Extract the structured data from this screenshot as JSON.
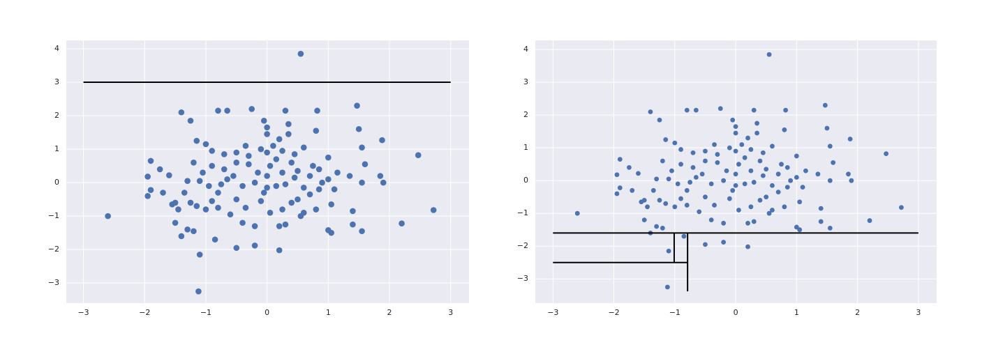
{
  "chart_data": [
    {
      "type": "scatter",
      "color": "#4c72b0",
      "line_color": "#000000",
      "grid": true,
      "xlim": [
        -3.28,
        3.3
      ],
      "ylim": [
        -3.6,
        4.25
      ],
      "xticks": [
        {
          "value": -3,
          "label": "−3"
        },
        {
          "value": -2,
          "label": "−2"
        },
        {
          "value": -1,
          "label": "−1"
        },
        0,
        1,
        2,
        3
      ],
      "yticks": [
        {
          "value": -3,
          "label": "−3"
        },
        {
          "value": -2,
          "label": "−2"
        },
        {
          "value": -1,
          "label": "−1"
        },
        0,
        1,
        2,
        3,
        4
      ],
      "x": [
        0.55,
        1.47,
        -1.4,
        -1.25,
        -0.8,
        -0.65,
        -0.25,
        0.3,
        0.82,
        1.5,
        1.88,
        2.47,
        2.72,
        2.2,
        1.55,
        1.05,
        1.0,
        1.4,
        -2.6,
        -1.95,
        -1.9,
        -1.95,
        -1.9,
        -1.75,
        -1.7,
        -1.6,
        -1.5,
        -1.45,
        -1.5,
        -1.4,
        -1.3,
        -1.2,
        -1.1,
        -1.12,
        -0.85,
        -0.5,
        -0.2,
        0.2,
        -1.15,
        -1.0,
        -0.9,
        -0.7,
        -0.5,
        -0.3,
        0,
        0.1,
        0.2,
        0.35,
        0.35,
        0,
        -0.05,
        0,
        0.6,
        0.8,
        1.0,
        1.55,
        1.6,
        1.85,
        1.9,
        1.55,
        1.35,
        1.15,
        1.0,
        0.85,
        0.7,
        0.5,
        0.4,
        0.25,
        0.15,
        0.05,
        -0.15,
        -0.3,
        -0.5,
        -0.7,
        -0.9,
        -1.05,
        -1.2,
        -1.3,
        -1.1,
        -0.95,
        -0.8,
        -0.65,
        -0.4,
        -0.2,
        0,
        0.15,
        0.3,
        0.45,
        0.6,
        0.85,
        1.05,
        1.4,
        0.8,
        0.6,
        0.4,
        0.25,
        0.2,
        0.3,
        0.05,
        -0.1,
        -0.2,
        -0.35,
        -0.5,
        -0.6,
        -0.8,
        -0.9,
        -1.0,
        -1.15,
        -1.25,
        -1.35,
        -0.4,
        0.5,
        0.7,
        1.1,
        0.9,
        -0.55,
        0,
        0.25,
        -0.1,
        -0.35,
        0.45,
        0.75,
        -0.75,
        -1.55,
        0.55,
        -0.05
      ],
      "values": [
        3.85,
        2.3,
        2.1,
        1.85,
        2.15,
        2.15,
        2.2,
        2.15,
        2.15,
        1.6,
        1.27,
        0.82,
        -0.82,
        -1.22,
        -1.45,
        -1.5,
        -1.42,
        -1.25,
        -1,
        -0.4,
        -0.22,
        0.18,
        0.65,
        0.4,
        -0.3,
        0.22,
        -0.6,
        -0.8,
        -1.2,
        -1.6,
        -1.4,
        -1.45,
        -2.15,
        -3.25,
        -1.7,
        -1.95,
        -1.88,
        -2.02,
        1.25,
        1.15,
        0.95,
        0.85,
        0.9,
        0.8,
        0.9,
        1.1,
        1.3,
        1.45,
        1.75,
        1.65,
        1.85,
        1.45,
        1.05,
        1.55,
        0.75,
        1.05,
        0.55,
        0.2,
        0,
        0,
        0.2,
        0.3,
        0.1,
        0.4,
        0.2,
        0.35,
        0.6,
        0.95,
        0.7,
        0.5,
        0.3,
        0.55,
        0.6,
        0.4,
        0.5,
        0.3,
        0.6,
        0.05,
        0.05,
        -0.1,
        -0.3,
        0.1,
        -0.1,
        0,
        -0.15,
        -0.1,
        -0.05,
        0.15,
        -0.15,
        -0.2,
        -0.65,
        -0.85,
        -0.8,
        -0.9,
        -0.6,
        -0.8,
        -1.3,
        -1.25,
        -0.9,
        -0.55,
        -1.3,
        -0.75,
        -0.5,
        -0.95,
        -0.75,
        -0.55,
        -0.8,
        -0.7,
        -0.6,
        -0.3,
        -1.2,
        -0.5,
        -0.35,
        -0.2,
        0,
        0.2,
        0.2,
        0.3,
        1.0,
        1.1,
        0.85,
        0.5,
        -0.05,
        -0.65,
        -1.0,
        -0.3
      ],
      "segments": [
        {
          "x": [
            -3,
            3
          ],
          "y": [
            3,
            3
          ]
        }
      ]
    },
    {
      "type": "scatter",
      "color": "#4c72b0",
      "line_color": "#000000",
      "grid": true,
      "xlim": [
        -3.29,
        3.3
      ],
      "ylim": [
        -3.74,
        4.28
      ],
      "xticks": [
        {
          "value": -3,
          "label": "−3"
        },
        {
          "value": -2,
          "label": "−2"
        },
        {
          "value": -1,
          "label": "−1"
        },
        0,
        1,
        2,
        3
      ],
      "yticks": [
        {
          "value": -3,
          "label": "−3"
        },
        {
          "value": -2,
          "label": "−2"
        },
        {
          "value": -1,
          "label": "−1"
        },
        0,
        1,
        2,
        3,
        4
      ],
      "x": [
        0.55,
        1.47,
        -1.4,
        -1.25,
        -0.8,
        -0.65,
        -0.25,
        0.3,
        0.82,
        1.5,
        1.88,
        2.47,
        2.72,
        2.2,
        1.55,
        1.05,
        1.0,
        1.4,
        -2.6,
        -1.95,
        -1.9,
        -1.95,
        -1.9,
        -1.75,
        -1.7,
        -1.6,
        -1.5,
        -1.45,
        -1.5,
        -1.4,
        -1.3,
        -1.2,
        -1.1,
        -1.12,
        -0.85,
        -0.5,
        -0.2,
        0.2,
        -1.15,
        -1.0,
        -0.9,
        -0.7,
        -0.5,
        -0.3,
        0,
        0.1,
        0.2,
        0.35,
        0.35,
        0,
        -0.05,
        0,
        0.6,
        0.8,
        1.0,
        1.55,
        1.6,
        1.85,
        1.9,
        1.55,
        1.35,
        1.15,
        1.0,
        0.85,
        0.7,
        0.5,
        0.4,
        0.25,
        0.15,
        0.05,
        -0.15,
        -0.3,
        -0.5,
        -0.7,
        -0.9,
        -1.05,
        -1.2,
        -1.3,
        -1.1,
        -0.95,
        -0.8,
        -0.65,
        -0.4,
        -0.2,
        0,
        0.15,
        0.3,
        0.45,
        0.6,
        0.85,
        1.05,
        1.4,
        0.8,
        0.6,
        0.4,
        0.25,
        0.2,
        0.3,
        0.05,
        -0.1,
        -0.2,
        -0.35,
        -0.5,
        -0.6,
        -0.8,
        -0.9,
        -1.0,
        -1.15,
        -1.25,
        -1.35,
        -0.4,
        0.5,
        0.7,
        1.1,
        0.9,
        -0.55,
        0,
        0.25,
        -0.1,
        -0.35,
        0.45,
        0.75,
        -0.75,
        -1.55,
        0.55,
        -0.05
      ],
      "values": [
        3.85,
        2.3,
        2.1,
        1.85,
        2.15,
        2.15,
        2.2,
        2.15,
        2.15,
        1.6,
        1.27,
        0.82,
        -0.82,
        -1.22,
        -1.45,
        -1.5,
        -1.42,
        -1.25,
        -1,
        -0.4,
        -0.22,
        0.18,
        0.65,
        0.4,
        -0.3,
        0.22,
        -0.6,
        -0.8,
        -1.2,
        -1.6,
        -1.4,
        -1.45,
        -2.15,
        -3.25,
        -1.7,
        -1.95,
        -1.88,
        -2.02,
        1.25,
        1.15,
        0.95,
        0.85,
        0.9,
        0.8,
        0.9,
        1.1,
        1.3,
        1.45,
        1.75,
        1.65,
        1.85,
        1.45,
        1.05,
        1.55,
        0.75,
        1.05,
        0.55,
        0.2,
        0,
        0,
        0.2,
        0.3,
        0.1,
        0.4,
        0.2,
        0.35,
        0.6,
        0.95,
        0.7,
        0.5,
        0.3,
        0.55,
        0.6,
        0.4,
        0.5,
        0.3,
        0.6,
        0.05,
        0.05,
        -0.1,
        -0.3,
        0.1,
        -0.1,
        0,
        -0.15,
        -0.1,
        -0.05,
        0.15,
        -0.15,
        -0.2,
        -0.65,
        -0.85,
        -0.8,
        -0.9,
        -0.6,
        -0.8,
        -1.3,
        -1.25,
        -0.9,
        -0.55,
        -1.3,
        -0.75,
        -0.5,
        -0.95,
        -0.75,
        -0.55,
        -0.8,
        -0.7,
        -0.6,
        -0.3,
        -1.2,
        -0.5,
        -0.35,
        -0.2,
        0,
        0.2,
        0.2,
        0.3,
        1.0,
        1.1,
        0.85,
        0.5,
        -0.05,
        -0.65,
        -1.0,
        -0.3
      ],
      "segments": [
        {
          "x": [
            -3,
            3
          ],
          "y": [
            -1.6,
            -1.6
          ]
        },
        {
          "x": [
            -3,
            -0.79
          ],
          "y": [
            -2.5,
            -2.5
          ]
        },
        {
          "x": [
            -0.79,
            -0.79
          ],
          "y": [
            -1.6,
            -3.38
          ]
        },
        {
          "x": [
            -1.01,
            -1.01
          ],
          "y": [
            -1.6,
            -2.5
          ]
        }
      ]
    }
  ]
}
